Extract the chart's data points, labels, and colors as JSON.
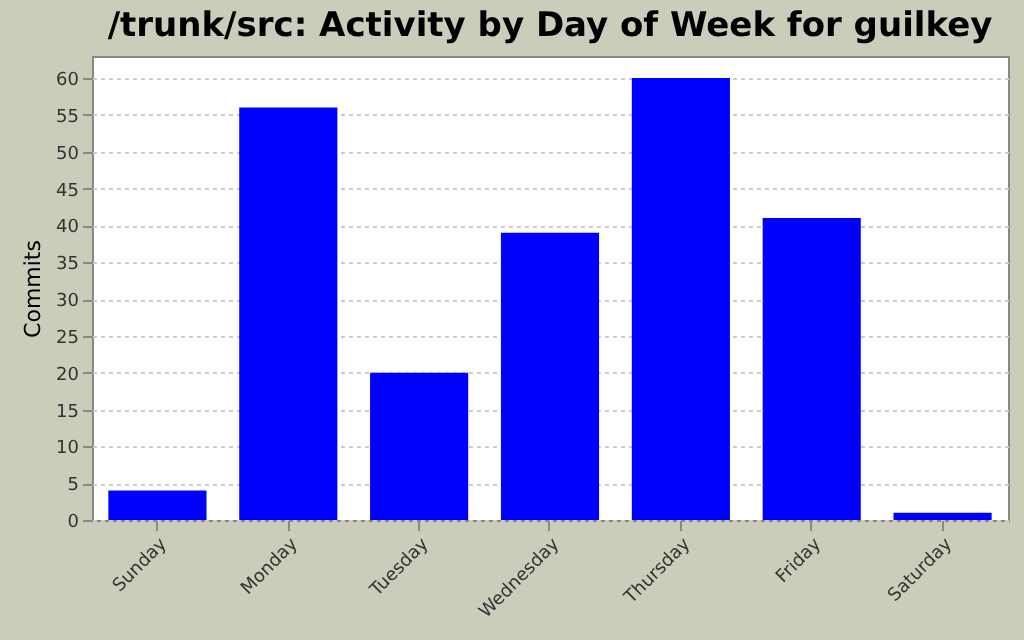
{
  "chart_data": {
    "type": "bar",
    "title": "/trunk/src: Activity by Day of Week for guilkey",
    "ylabel": "Commits",
    "categories": [
      "Sunday",
      "Monday",
      "Tuesday",
      "Wednesday",
      "Thursday",
      "Friday",
      "Saturday"
    ],
    "values": [
      4,
      56,
      20,
      39,
      60,
      41,
      1
    ],
    "color": "#0000ff",
    "ylim": [
      0,
      63
    ],
    "yticks": [
      0,
      5,
      10,
      15,
      20,
      25,
      30,
      35,
      40,
      45,
      50,
      55,
      60
    ],
    "grid": "y"
  }
}
